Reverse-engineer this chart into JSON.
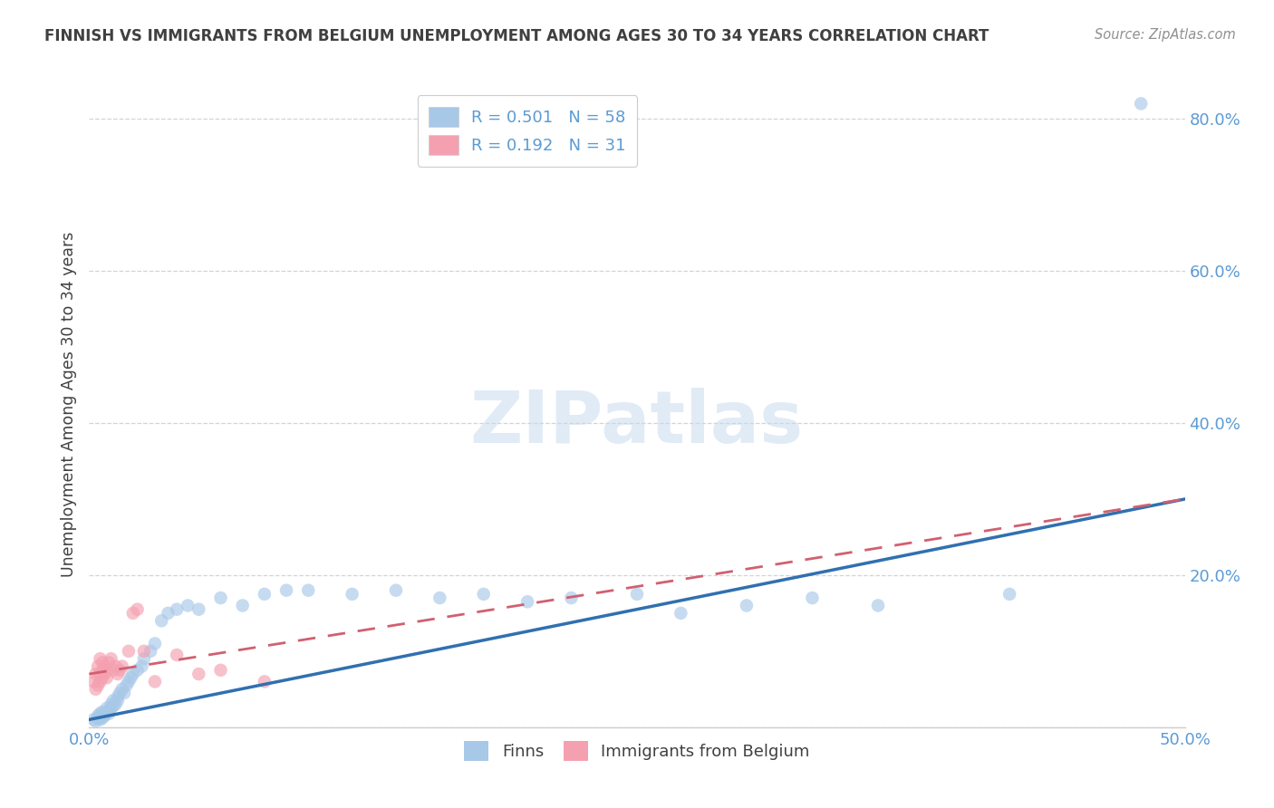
{
  "title": "FINNISH VS IMMIGRANTS FROM BELGIUM UNEMPLOYMENT AMONG AGES 30 TO 34 YEARS CORRELATION CHART",
  "source": "Source: ZipAtlas.com",
  "ylabel_label": "Unemployment Among Ages 30 to 34 years",
  "xlim": [
    0.0,
    0.5
  ],
  "ylim": [
    0.0,
    0.85
  ],
  "blue_color": "#a8c8e8",
  "pink_color": "#f4a0b0",
  "blue_line_color": "#3070b0",
  "pink_line_color": "#d06070",
  "axis_label_color": "#5b9bd5",
  "title_color": "#404040",
  "background_color": "#ffffff",
  "grid_color": "#d0d0d0",
  "finns_x": [
    0.002,
    0.003,
    0.004,
    0.004,
    0.005,
    0.005,
    0.005,
    0.006,
    0.006,
    0.006,
    0.007,
    0.007,
    0.008,
    0.008,
    0.009,
    0.009,
    0.01,
    0.01,
    0.011,
    0.011,
    0.012,
    0.013,
    0.013,
    0.014,
    0.015,
    0.016,
    0.017,
    0.018,
    0.019,
    0.02,
    0.022,
    0.024,
    0.025,
    0.028,
    0.03,
    0.033,
    0.036,
    0.04,
    0.045,
    0.05,
    0.06,
    0.07,
    0.08,
    0.09,
    0.1,
    0.12,
    0.14,
    0.16,
    0.18,
    0.2,
    0.22,
    0.25,
    0.27,
    0.3,
    0.33,
    0.36,
    0.42,
    0.48
  ],
  "finns_y": [
    0.01,
    0.008,
    0.012,
    0.015,
    0.01,
    0.013,
    0.018,
    0.012,
    0.015,
    0.02,
    0.015,
    0.018,
    0.02,
    0.025,
    0.018,
    0.022,
    0.025,
    0.03,
    0.028,
    0.035,
    0.03,
    0.035,
    0.04,
    0.045,
    0.05,
    0.045,
    0.055,
    0.06,
    0.065,
    0.07,
    0.075,
    0.08,
    0.09,
    0.1,
    0.11,
    0.14,
    0.15,
    0.155,
    0.16,
    0.155,
    0.17,
    0.16,
    0.175,
    0.18,
    0.18,
    0.175,
    0.18,
    0.17,
    0.175,
    0.165,
    0.17,
    0.175,
    0.15,
    0.16,
    0.17,
    0.16,
    0.175,
    0.82
  ],
  "immig_x": [
    0.002,
    0.003,
    0.003,
    0.004,
    0.004,
    0.005,
    0.005,
    0.005,
    0.006,
    0.006,
    0.006,
    0.007,
    0.007,
    0.008,
    0.008,
    0.009,
    0.01,
    0.011,
    0.012,
    0.013,
    0.014,
    0.015,
    0.018,
    0.02,
    0.022,
    0.025,
    0.03,
    0.04,
    0.05,
    0.06,
    0.08
  ],
  "immig_y": [
    0.06,
    0.05,
    0.07,
    0.055,
    0.08,
    0.06,
    0.07,
    0.09,
    0.065,
    0.075,
    0.085,
    0.07,
    0.08,
    0.065,
    0.075,
    0.085,
    0.09,
    0.075,
    0.08,
    0.07,
    0.075,
    0.08,
    0.1,
    0.15,
    0.155,
    0.1,
    0.06,
    0.095,
    0.07,
    0.075,
    0.06
  ],
  "finns_line_x": [
    0.0,
    0.5
  ],
  "finns_line_y": [
    0.01,
    0.3
  ],
  "immig_line_x": [
    0.0,
    0.5
  ],
  "immig_line_y": [
    0.07,
    0.3
  ],
  "watermark_text": "ZIPatlas",
  "legend_finns": "R = 0.501   N = 58",
  "legend_immig": "R = 0.192   N = 31"
}
